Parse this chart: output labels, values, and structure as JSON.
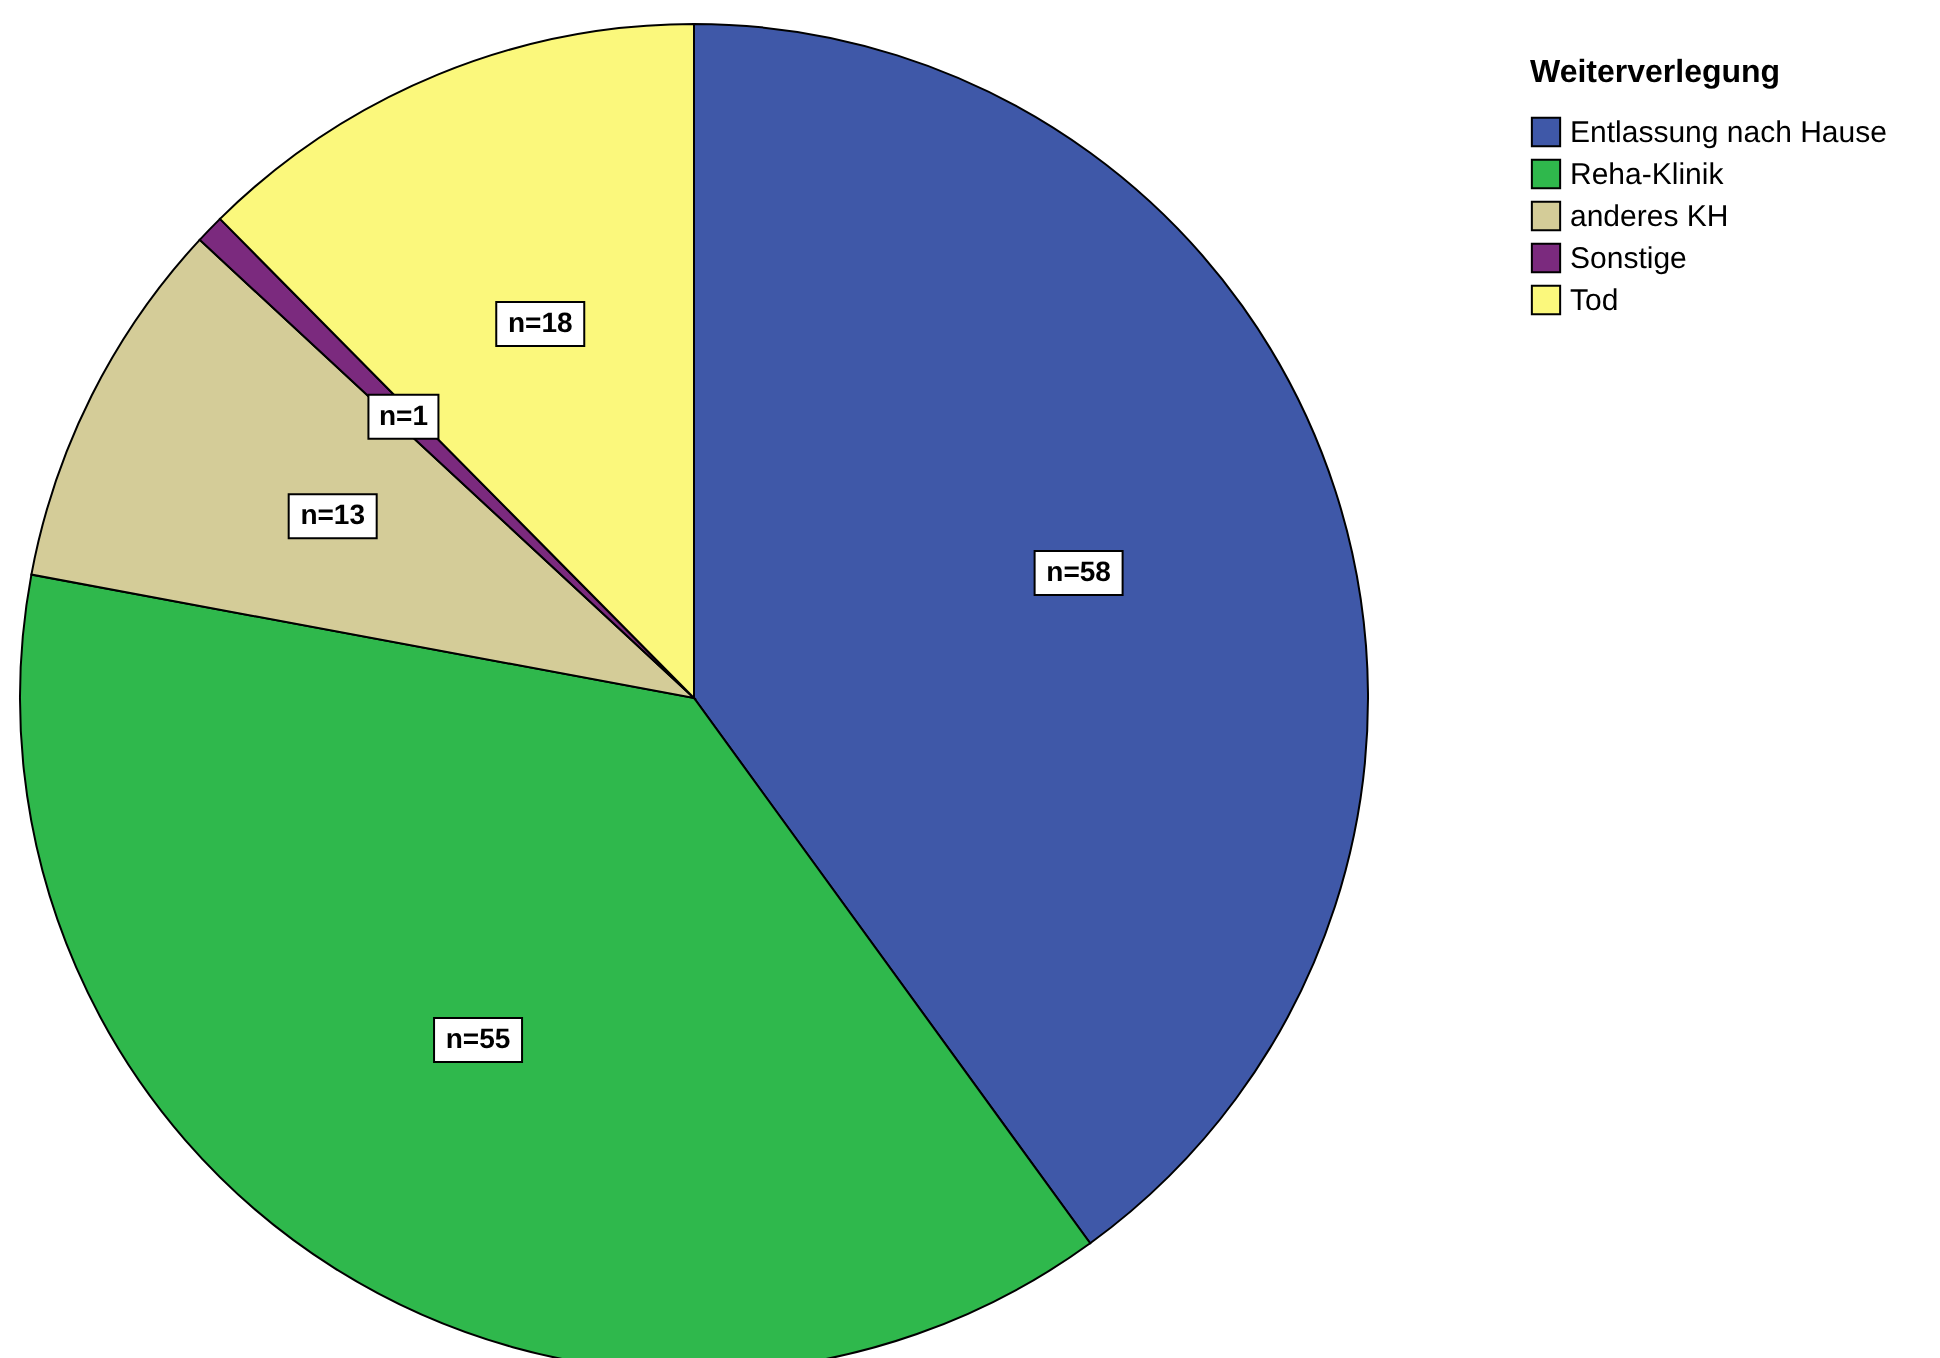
{
  "chart_data": {
    "type": "pie",
    "legend_title": "Weiterverlegung",
    "legend": "top right",
    "categories": [
      "Entlassung nach Hause",
      "Reha-Klinik",
      "anderes KH",
      "Sonstige",
      "Tod"
    ],
    "values": [
      58,
      55,
      13,
      1,
      18
    ],
    "colors": [
      "#3f58a8",
      "#2fb84c",
      "#d4cc98",
      "#7b2a7e",
      "#fbf87c"
    ],
    "value_labels": [
      "n=58",
      "n=55",
      "n=13",
      "n=1",
      "n=18"
    ]
  }
}
